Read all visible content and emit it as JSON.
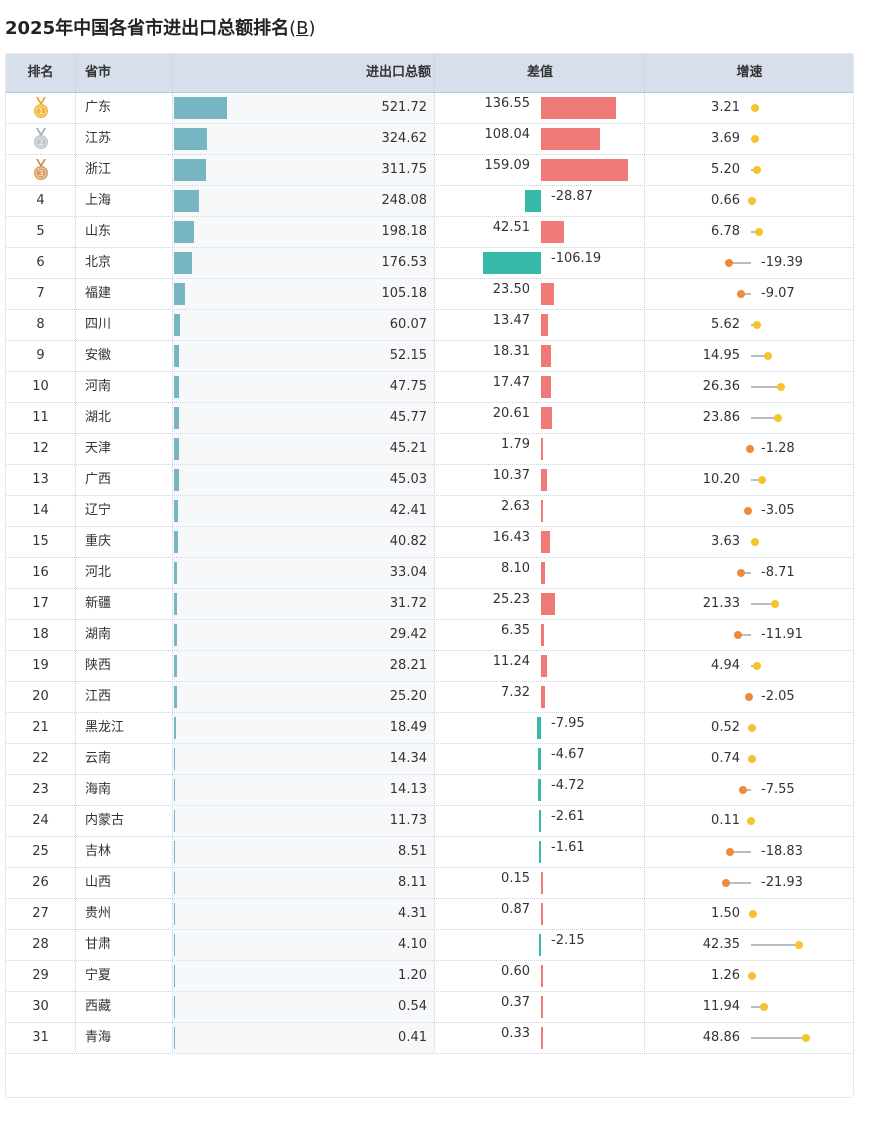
{
  "title": "2025年中国各省市进出口总额排名",
  "unit_open": "(",
  "unit_link": "B",
  "unit_close": ")",
  "columns": {
    "rank": "排名",
    "province": "省市",
    "total": "进出口总额",
    "diff": "差值",
    "growth": "增速"
  },
  "colors": {
    "total_bar": "#76b5c1",
    "diff_positive": "#ef7a77",
    "diff_negative": "#36b9a9",
    "growth_up": "#f5c42b",
    "growth_down": "#ee8a3c",
    "header_bg": "#d6dfeb"
  },
  "medals": [
    "gold-medal-icon",
    "silver-medal-icon",
    "bronze-medal-icon"
  ],
  "rows": [
    {
      "rank": "1",
      "name": "广东",
      "total": "521.72",
      "diff": "136.55",
      "growth": "3.21"
    },
    {
      "rank": "2",
      "name": "江苏",
      "total": "324.62",
      "diff": "108.04",
      "growth": "3.69"
    },
    {
      "rank": "3",
      "name": "浙江",
      "total": "311.75",
      "diff": "159.09",
      "growth": "5.20"
    },
    {
      "rank": "4",
      "name": "上海",
      "total": "248.08",
      "diff": "-28.87",
      "growth": "0.66"
    },
    {
      "rank": "5",
      "name": "山东",
      "total": "198.18",
      "diff": "42.51",
      "growth": "6.78"
    },
    {
      "rank": "6",
      "name": "北京",
      "total": "176.53",
      "diff": "-106.19",
      "growth": "-19.39"
    },
    {
      "rank": "7",
      "name": "福建",
      "total": "105.18",
      "diff": "23.50",
      "growth": "-9.07"
    },
    {
      "rank": "8",
      "name": "四川",
      "total": "60.07",
      "diff": "13.47",
      "growth": "5.62"
    },
    {
      "rank": "9",
      "name": "安徽",
      "total": "52.15",
      "diff": "18.31",
      "growth": "14.95"
    },
    {
      "rank": "10",
      "name": "河南",
      "total": "47.75",
      "diff": "17.47",
      "growth": "26.36"
    },
    {
      "rank": "11",
      "name": "湖北",
      "total": "45.77",
      "diff": "20.61",
      "growth": "23.86"
    },
    {
      "rank": "12",
      "name": "天津",
      "total": "45.21",
      "diff": "1.79",
      "growth": "-1.28"
    },
    {
      "rank": "13",
      "name": "广西",
      "total": "45.03",
      "diff": "10.37",
      "growth": "10.20"
    },
    {
      "rank": "14",
      "name": "辽宁",
      "total": "42.41",
      "diff": "2.63",
      "growth": "-3.05"
    },
    {
      "rank": "15",
      "name": "重庆",
      "total": "40.82",
      "diff": "16.43",
      "growth": "3.63"
    },
    {
      "rank": "16",
      "name": "河北",
      "total": "33.04",
      "diff": "8.10",
      "growth": "-8.71"
    },
    {
      "rank": "17",
      "name": "新疆",
      "total": "31.72",
      "diff": "25.23",
      "growth": "21.33"
    },
    {
      "rank": "18",
      "name": "湖南",
      "total": "29.42",
      "diff": "6.35",
      "growth": "-11.91"
    },
    {
      "rank": "19",
      "name": "陕西",
      "total": "28.21",
      "diff": "11.24",
      "growth": "4.94"
    },
    {
      "rank": "20",
      "name": "江西",
      "total": "25.20",
      "diff": "7.32",
      "growth": "-2.05"
    },
    {
      "rank": "21",
      "name": "黑龙江",
      "total": "18.49",
      "diff": "-7.95",
      "growth": "0.52"
    },
    {
      "rank": "22",
      "name": "云南",
      "total": "14.34",
      "diff": "-4.67",
      "growth": "0.74"
    },
    {
      "rank": "23",
      "name": "海南",
      "total": "14.13",
      "diff": "-4.72",
      "growth": "-7.55"
    },
    {
      "rank": "24",
      "name": "内蒙古",
      "total": "11.73",
      "diff": "-2.61",
      "growth": "0.11"
    },
    {
      "rank": "25",
      "name": "吉林",
      "total": "8.51",
      "diff": "-1.61",
      "growth": "-18.83"
    },
    {
      "rank": "26",
      "name": "山西",
      "total": "8.11",
      "diff": "0.15",
      "growth": "-21.93"
    },
    {
      "rank": "27",
      "name": "贵州",
      "total": "4.31",
      "diff": "0.87",
      "growth": "1.50"
    },
    {
      "rank": "28",
      "name": "甘肃",
      "total": "4.10",
      "diff": "-2.15",
      "growth": "42.35"
    },
    {
      "rank": "29",
      "name": "宁夏",
      "total": "1.20",
      "diff": "0.60",
      "growth": "1.26"
    },
    {
      "rank": "30",
      "name": "西藏",
      "total": "0.54",
      "diff": "0.37",
      "growth": "11.94"
    },
    {
      "rank": "31",
      "name": "青海",
      "total": "0.41",
      "diff": "0.33",
      "growth": "48.86"
    }
  ]
}
